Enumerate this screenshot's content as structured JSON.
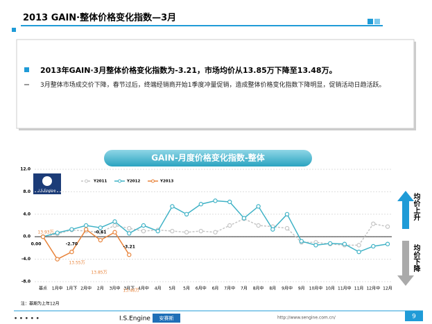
{
  "header": {
    "title": "2013 GAIN·整体价格变化指数—3月"
  },
  "summary": {
    "headline": "2013年GAIN·3月整体价格变化指数为-3.21，市场均价从13.85万下降至13.48万。",
    "body": "3月整体市场成交价下降，春节过后，终端经销商开始1季度冲量促销，造成整体价格变化指数下降明显，促销活动日趋活跃。"
  },
  "chart_data": {
    "type": "line",
    "title": "GAIN-月度价格变化指数-整体",
    "logo": "I.S.Engine",
    "categories": [
      "基点",
      "1月中",
      "1月下",
      "2月中",
      "2月",
      "3月中",
      "3月下",
      "4月中",
      "4月",
      "5月",
      "5月",
      "6月中",
      "6月",
      "7月中",
      "7月",
      "8月中",
      "8月",
      "9月中",
      "9月",
      "10月中",
      "10月",
      "11月中",
      "11月",
      "12月中",
      "12月"
    ],
    "series": [
      {
        "name": "Y2011",
        "color": "#c4c4c4",
        "values": [
          0,
          0.5,
          1.2,
          1.0,
          0.8,
          2.0,
          1.5,
          1.0,
          1.2,
          1.0,
          0.8,
          1.0,
          0.8,
          2.0,
          3.2,
          2.0,
          1.8,
          1.5,
          -1.0,
          -1.0,
          -1.3,
          -1.5,
          -1.5,
          2.3,
          1.8
        ]
      },
      {
        "name": "Y2012",
        "color": "#3fb2c6",
        "values": [
          0,
          0.7,
          1.3,
          2.0,
          1.6,
          2.7,
          0.6,
          2.0,
          1.0,
          5.4,
          4.0,
          5.8,
          6.4,
          6.2,
          3.3,
          5.4,
          1.3,
          4.0,
          -0.8,
          -1.5,
          -1.2,
          -1.3,
          -2.7,
          -1.7,
          -1.3
        ]
      },
      {
        "name": "Y2013",
        "color": "#e8833a",
        "values": [
          0,
          -4.0,
          -2.7,
          1.3,
          -0.61,
          0.8,
          -3.21,
          null,
          null,
          null,
          null,
          null,
          null,
          null,
          null,
          null,
          null,
          null,
          null,
          null,
          null,
          null,
          null,
          null,
          null
        ],
        "value_labels": [
          "0.00",
          null,
          "-2.70",
          null,
          "-0.61",
          null,
          "-3.21",
          null,
          null,
          null,
          null,
          null,
          null,
          null,
          null,
          null,
          null,
          null,
          null,
          null,
          null,
          null,
          null,
          null,
          null
        ]
      }
    ],
    "annotations": [
      "13.93万",
      "13.55万",
      "13.85万",
      "13.48万"
    ],
    "ylim": [
      -8,
      12
    ],
    "yticks": [
      {
        "value": -8,
        "label": "-8.0"
      },
      {
        "value": -4,
        "label": "-4.0"
      },
      {
        "value": 0,
        "label": "0.0"
      },
      {
        "value": 4,
        "label": "4.0"
      },
      {
        "value": 8,
        "label": "8.0"
      },
      {
        "value": 12,
        "label": "12.0"
      }
    ],
    "grid": true,
    "legend": "top"
  },
  "side": {
    "up": "均价上升",
    "down": "均价下降"
  },
  "footer": {
    "note": "注：基期为上年12月",
    "brand": "I.S.Engine",
    "brand_cn": "安赛斯",
    "url": "http://www.sengine.com.cn/",
    "page": "9"
  }
}
